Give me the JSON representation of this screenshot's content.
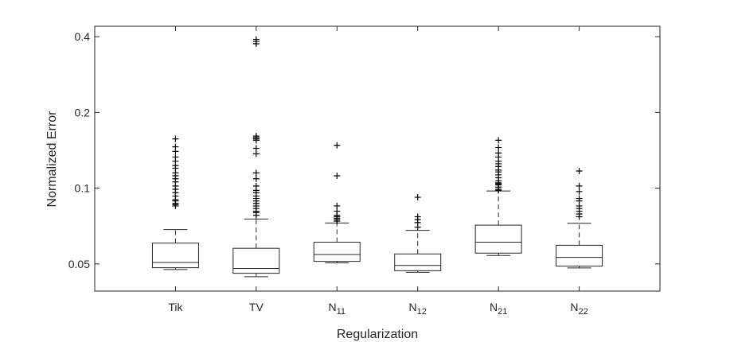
{
  "chart_data": {
    "type": "box",
    "xlabel": "Regularization",
    "ylabel": "Normalized Error",
    "yscale": "log",
    "ylim": [
      0.039,
      0.44
    ],
    "yticks": [
      {
        "value": 0.05,
        "label": "0.05"
      },
      {
        "value": 0.1,
        "label": "0.1"
      },
      {
        "value": 0.2,
        "label": "0.2"
      },
      {
        "value": 0.4,
        "label": "0.4"
      }
    ],
    "grid": false,
    "categories": [
      {
        "base": "Tik",
        "sub": ""
      },
      {
        "base": "TV",
        "sub": ""
      },
      {
        "base": "N",
        "sub": "11"
      },
      {
        "base": "N",
        "sub": "12"
      },
      {
        "base": "N",
        "sub": "21"
      },
      {
        "base": "N",
        "sub": "22"
      }
    ],
    "boxes": [
      {
        "whisker_low": 0.0475,
        "q1": 0.0483,
        "median": 0.0507,
        "q3": 0.0605,
        "whisker_high": 0.0685,
        "outliers": [
          0.157,
          0.146,
          0.14,
          0.133,
          0.128,
          0.123,
          0.12,
          0.115,
          0.112,
          0.109,
          0.106,
          0.102,
          0.099,
          0.096,
          0.093,
          0.09,
          0.089,
          0.087,
          0.086,
          0.085
        ]
      },
      {
        "whisker_low": 0.0445,
        "q1": 0.0459,
        "median": 0.048,
        "q3": 0.0577,
        "whisker_high": 0.0754,
        "outliers": [
          0.39,
          0.383,
          0.375,
          0.161,
          0.159,
          0.157,
          0.155,
          0.144,
          0.137,
          0.115,
          0.109,
          0.102,
          0.098,
          0.096,
          0.093,
          0.091,
          0.089,
          0.087,
          0.085,
          0.083,
          0.081,
          0.08,
          0.078
        ]
      },
      {
        "whisker_low": 0.0505,
        "q1": 0.0512,
        "median": 0.0545,
        "q3": 0.061,
        "whisker_high": 0.0727,
        "outliers": [
          0.148,
          0.112,
          0.085,
          0.081,
          0.078,
          0.077,
          0.076,
          0.075,
          0.074
        ]
      },
      {
        "whisker_low": 0.0463,
        "q1": 0.047,
        "median": 0.0493,
        "q3": 0.0548,
        "whisker_high": 0.068,
        "outliers": [
          0.092,
          0.077,
          0.075,
          0.073,
          0.07
        ]
      },
      {
        "whisker_low": 0.054,
        "q1": 0.0552,
        "median": 0.061,
        "q3": 0.0713,
        "whisker_high": 0.0975,
        "outliers": [
          0.155,
          0.145,
          0.138,
          0.133,
          0.128,
          0.125,
          0.122,
          0.118,
          0.116,
          0.113,
          0.11,
          0.107,
          0.105,
          0.104,
          0.103,
          0.101,
          0.099,
          0.098
        ]
      },
      {
        "whisker_low": 0.0482,
        "q1": 0.049,
        "median": 0.0531,
        "q3": 0.0593,
        "whisker_high": 0.0725,
        "outliers": [
          0.117,
          0.102,
          0.097,
          0.091,
          0.089,
          0.085,
          0.083,
          0.081,
          0.079,
          0.077
        ]
      }
    ]
  }
}
